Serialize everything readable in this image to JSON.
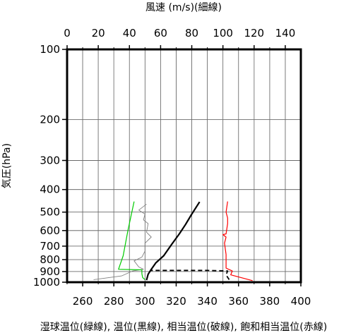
{
  "chart_data": {
    "type": "line",
    "title_top": "風速 (m/s)(細線)",
    "xlabel_bottom": "湿球温位(緑線), 温位(黒線), 相当温位(破線), 飽和相当温位(赤線)",
    "ylabel": "気圧(hPa)",
    "y_scale": "log",
    "y_reversed": true,
    "ylim": [
      100,
      1000
    ],
    "y_ticks": [
      100,
      200,
      300,
      400,
      500,
      600,
      700,
      800,
      900,
      1000
    ],
    "x_bottom": {
      "unit": "K",
      "lim": [
        250,
        400
      ],
      "ticks": [
        260,
        280,
        300,
        320,
        340,
        360,
        380,
        400
      ]
    },
    "x_top": {
      "unit": "m/s",
      "lim": [
        0,
        150
      ],
      "ticks": [
        0,
        20,
        40,
        60,
        80,
        100,
        120,
        140
      ]
    },
    "grid": true,
    "series": [
      {
        "key": "wind_speed",
        "axis": "top",
        "style": "thin",
        "color": "#808080",
        "points": [
          [
            17,
            975
          ],
          [
            35,
            940
          ],
          [
            42,
            895
          ],
          [
            49,
            880
          ],
          [
            46,
            860
          ],
          [
            43,
            810
          ],
          [
            48,
            780
          ],
          [
            50,
            735
          ],
          [
            50,
            680
          ],
          [
            54,
            640
          ],
          [
            51,
            610
          ],
          [
            52,
            560
          ],
          [
            49,
            540
          ],
          [
            50,
            510
          ],
          [
            46,
            490
          ],
          [
            51,
            462
          ]
        ]
      },
      {
        "key": "wet_bulb_potential_temperature",
        "axis": "bottom",
        "style": "solid",
        "color": "#00cc00",
        "points": [
          [
            300,
            975
          ],
          [
            298.5,
            955
          ],
          [
            298,
            920
          ],
          [
            298,
            885
          ],
          [
            283,
            880
          ],
          [
            286,
            770
          ],
          [
            289,
            600
          ],
          [
            293,
            450
          ]
        ]
      },
      {
        "key": "potential_temperature",
        "axis": "bottom",
        "style": "thick",
        "color": "#000000",
        "points": [
          [
            301,
            980
          ],
          [
            302,
            925
          ],
          [
            304,
            880
          ],
          [
            307,
            825
          ],
          [
            312,
            770
          ],
          [
            317,
            690
          ],
          [
            322,
            620
          ],
          [
            326,
            565
          ],
          [
            330,
            510
          ],
          [
            335,
            452
          ]
        ]
      },
      {
        "key": "equivalent_potential_temperature",
        "axis": "bottom",
        "style": "dashed",
        "color": "#000000",
        "points": [
          [
            354,
            975
          ],
          [
            352,
            930
          ],
          [
            353,
            895
          ],
          [
            340,
            890
          ],
          [
            326,
            890
          ],
          [
            304,
            890
          ]
        ]
      },
      {
        "key": "saturated_equivalent_potential_temperature",
        "axis": "bottom",
        "style": "solid",
        "color": "#ff0000",
        "points": [
          [
            369,
            985
          ],
          [
            355,
            930
          ],
          [
            356,
            895
          ],
          [
            352,
            870
          ],
          [
            352,
            760
          ],
          [
            351,
            680
          ],
          [
            352,
            640
          ],
          [
            350,
            625
          ],
          [
            352,
            620
          ],
          [
            353,
            560
          ],
          [
            353,
            530
          ],
          [
            352,
            500
          ],
          [
            353,
            450
          ]
        ]
      }
    ]
  }
}
